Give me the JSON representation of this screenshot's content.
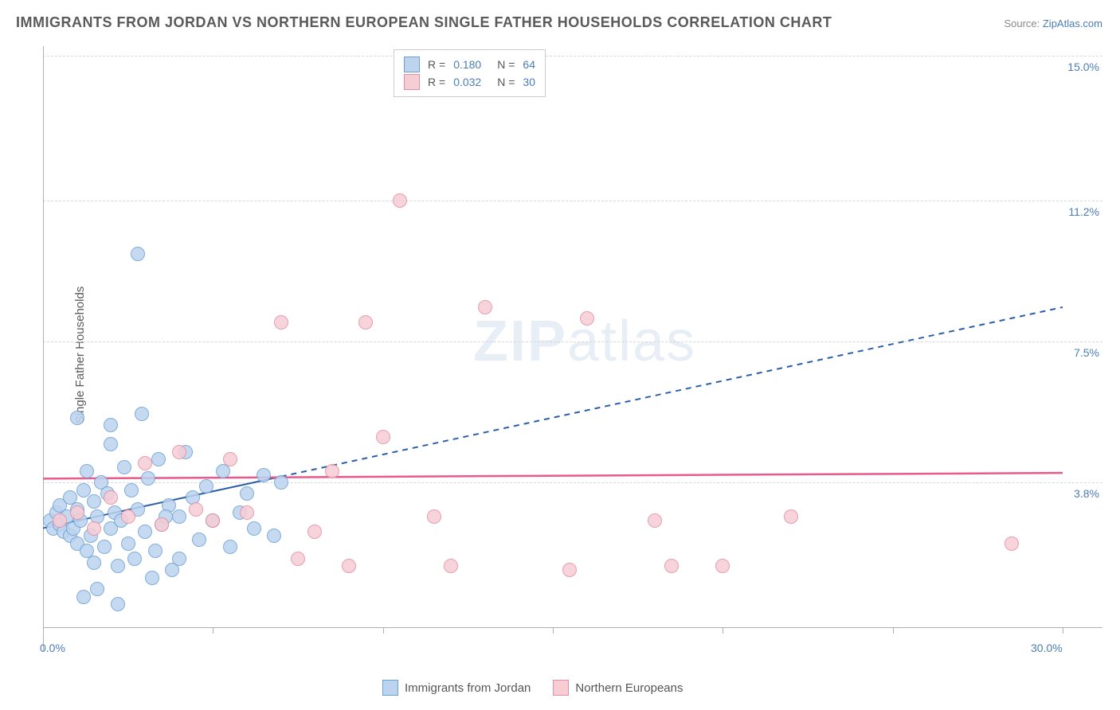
{
  "title": "IMMIGRANTS FROM JORDAN VS NORTHERN EUROPEAN SINGLE FATHER HOUSEHOLDS CORRELATION CHART",
  "source": {
    "label": "Source: ",
    "site": "ZipAtlas.com"
  },
  "y_axis_label": "Single Father Households",
  "watermark": {
    "bold": "ZIP",
    "rest": "atlas"
  },
  "chart": {
    "type": "scatter",
    "xlim": [
      0,
      30
    ],
    "ylim": [
      0,
      15
    ],
    "x_tick_positions": [
      0,
      5,
      10,
      15,
      20,
      25,
      30
    ],
    "x_label_min": "0.0%",
    "x_label_max": "30.0%",
    "y_ticks": [
      {
        "v": 3.8,
        "label": "3.8%"
      },
      {
        "v": 7.5,
        "label": "7.5%"
      },
      {
        "v": 11.2,
        "label": "11.2%"
      },
      {
        "v": 15.0,
        "label": "15.0%"
      }
    ],
    "grid_color": "#d8d8d8",
    "background_color": "#ffffff",
    "axis_color": "#b0b0b0",
    "marker_radius": 9,
    "series": [
      {
        "name": "Immigrants from Jordan",
        "fill": "#bcd4ee",
        "stroke": "#6a9fd4",
        "R": "0.180",
        "N": "64",
        "trend": {
          "x1": 0,
          "y1": 2.6,
          "x2": 30,
          "y2": 8.4,
          "solid_until_x": 7,
          "color": "#2d5fa8",
          "width": 2
        },
        "points": [
          [
            0.2,
            2.8
          ],
          [
            0.3,
            2.6
          ],
          [
            0.4,
            3.0
          ],
          [
            0.5,
            2.7
          ],
          [
            0.5,
            3.2
          ],
          [
            0.6,
            2.5
          ],
          [
            0.7,
            2.9
          ],
          [
            0.8,
            2.4
          ],
          [
            0.8,
            3.4
          ],
          [
            0.9,
            2.6
          ],
          [
            1.0,
            2.2
          ],
          [
            1.0,
            3.1
          ],
          [
            1.1,
            2.8
          ],
          [
            1.2,
            3.6
          ],
          [
            1.3,
            2.0
          ],
          [
            1.3,
            4.1
          ],
          [
            1.4,
            2.4
          ],
          [
            1.5,
            3.3
          ],
          [
            1.5,
            1.7
          ],
          [
            1.6,
            2.9
          ],
          [
            1.7,
            3.8
          ],
          [
            1.8,
            2.1
          ],
          [
            1.9,
            3.5
          ],
          [
            2.0,
            2.6
          ],
          [
            2.0,
            5.3
          ],
          [
            2.1,
            3.0
          ],
          [
            2.2,
            1.6
          ],
          [
            2.3,
            2.8
          ],
          [
            2.4,
            4.2
          ],
          [
            2.5,
            2.2
          ],
          [
            2.6,
            3.6
          ],
          [
            2.7,
            1.8
          ],
          [
            2.8,
            3.1
          ],
          [
            2.9,
            5.6
          ],
          [
            3.0,
            2.5
          ],
          [
            3.1,
            3.9
          ],
          [
            3.3,
            2.0
          ],
          [
            3.4,
            4.4
          ],
          [
            3.5,
            2.7
          ],
          [
            3.7,
            3.2
          ],
          [
            3.8,
            1.5
          ],
          [
            4.0,
            2.9
          ],
          [
            4.2,
            4.6
          ],
          [
            4.4,
            3.4
          ],
          [
            4.6,
            2.3
          ],
          [
            4.8,
            3.7
          ],
          [
            5.0,
            2.8
          ],
          [
            5.3,
            4.1
          ],
          [
            5.5,
            2.1
          ],
          [
            5.8,
            3.0
          ],
          [
            6.0,
            3.5
          ],
          [
            6.2,
            2.6
          ],
          [
            6.5,
            4.0
          ],
          [
            6.8,
            2.4
          ],
          [
            7.0,
            3.8
          ],
          [
            1.2,
            0.8
          ],
          [
            1.6,
            1.0
          ],
          [
            2.2,
            0.6
          ],
          [
            2.8,
            9.8
          ],
          [
            1.0,
            5.5
          ],
          [
            3.2,
            1.3
          ],
          [
            4.0,
            1.8
          ],
          [
            2.0,
            4.8
          ],
          [
            3.6,
            2.9
          ]
        ]
      },
      {
        "name": "Northern Europeans",
        "fill": "#f6cdd5",
        "stroke": "#e58ca0",
        "R": "0.032",
        "N": "30",
        "trend": {
          "x1": 0,
          "y1": 3.9,
          "x2": 30,
          "y2": 4.05,
          "color": "#e85a8a",
          "width": 2.5
        },
        "points": [
          [
            0.5,
            2.8
          ],
          [
            1.0,
            3.0
          ],
          [
            1.5,
            2.6
          ],
          [
            2.0,
            3.4
          ],
          [
            2.5,
            2.9
          ],
          [
            3.0,
            4.3
          ],
          [
            3.5,
            2.7
          ],
          [
            4.0,
            4.6
          ],
          [
            4.5,
            3.1
          ],
          [
            5.0,
            2.8
          ],
          [
            5.5,
            4.4
          ],
          [
            6.0,
            3.0
          ],
          [
            7.0,
            8.0
          ],
          [
            7.5,
            1.8
          ],
          [
            8.0,
            2.5
          ],
          [
            8.5,
            4.1
          ],
          [
            9.0,
            1.6
          ],
          [
            10.0,
            5.0
          ],
          [
            10.5,
            11.2
          ],
          [
            11.5,
            2.9
          ],
          [
            12.0,
            1.6
          ],
          [
            13.0,
            8.4
          ],
          [
            15.5,
            1.5
          ],
          [
            16.0,
            8.1
          ],
          [
            18.0,
            2.8
          ],
          [
            18.5,
            1.6
          ],
          [
            20.0,
            1.6
          ],
          [
            22.0,
            2.9
          ],
          [
            28.5,
            2.2
          ],
          [
            9.5,
            8.0
          ]
        ]
      }
    ]
  },
  "legend_top": {
    "R_label": "R  =",
    "N_label": "N  ="
  },
  "legend_bottom_labels": [
    "Immigrants from Jordan",
    "Northern Europeans"
  ]
}
